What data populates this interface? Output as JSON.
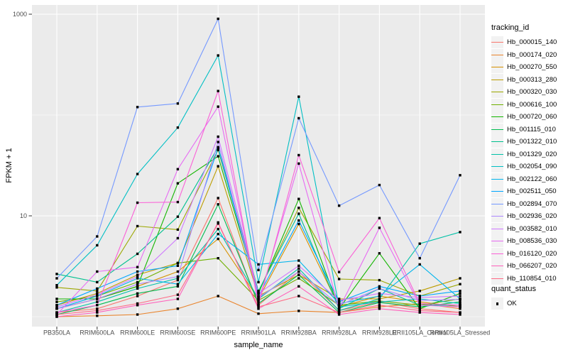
{
  "figure": {
    "colors": {
      "panel_bg": "#EBEBEB",
      "grid": "#FFFFFF",
      "axis_text": "#4D4D4D",
      "tick_mark": "#333333",
      "point": "#000000",
      "legend_key_bg": "#F2F2F2"
    },
    "y_axis": {
      "ticks": [
        {
          "value": 1000,
          "label": "1000"
        },
        {
          "value": 10,
          "label": "10"
        }
      ],
      "minor_gridline_values": [
        100,
        1
      ]
    },
    "legends": {
      "tracking": {
        "title": "tracking_id"
      },
      "quant": {
        "title": "quant_status",
        "entries": [
          {
            "label": "OK",
            "marker": "black-square"
          }
        ]
      }
    }
  },
  "chart_data": {
    "type": "line",
    "title": "",
    "xlabel": "sample_name",
    "ylabel": "FPKM + 1",
    "y_scale": "log10",
    "ylim": [
      1,
      1000
    ],
    "y_breaks": [
      10,
      1000
    ],
    "grid": true,
    "legend_position": "right",
    "point_marker": "black-square",
    "categories": [
      "PB350LA",
      "RRIM600LA",
      "RRIM600LE",
      "RRIM600SE",
      "RRIM600PE",
      "RRIM901LA",
      "RRIM928BA",
      "RRIM928LA",
      "RRIM928LE",
      "RRII105LA_Control",
      "RRII105LA_Stressed"
    ],
    "series": [
      {
        "name": "Hb_000015_140",
        "color": "#F8766D",
        "values": [
          1.1,
          1.2,
          1.6,
          2.3,
          15,
          1.3,
          2.8,
          1.15,
          1.4,
          1.2,
          1.1
        ]
      },
      {
        "name": "Hb_000174_020",
        "color": "#E9842C",
        "values": [
          1.0,
          1.02,
          1.05,
          1.2,
          1.6,
          1.07,
          1.14,
          1.1,
          1.25,
          1.35,
          1.2
        ]
      },
      {
        "name": "Hb_000270_550",
        "color": "#D69100",
        "values": [
          1.2,
          1.5,
          2.0,
          2.8,
          5.9,
          1.5,
          8.3,
          1.25,
          1.6,
          1.4,
          1.25
        ]
      },
      {
        "name": "Hb_000313_280",
        "color": "#BC9D00",
        "values": [
          1.3,
          1.7,
          2.6,
          3.4,
          31,
          1.6,
          2.6,
          1.5,
          1.5,
          1.8,
          2.4
        ]
      },
      {
        "name": "Hb_000320_030",
        "color": "#9CA700",
        "values": [
          1.95,
          1.8,
          7.9,
          7.3,
          45,
          1.75,
          12,
          2.36,
          2.3,
          1.6,
          2.1
        ]
      },
      {
        "name": "Hb_000616_100",
        "color": "#6FB000",
        "values": [
          1.4,
          1.6,
          2.2,
          3.4,
          3.8,
          1.45,
          2.4,
          1.3,
          1.43,
          1.3,
          1.5
        ]
      },
      {
        "name": "Hb_000720_060",
        "color": "#13B600",
        "values": [
          1.5,
          1.5,
          2.0,
          21,
          39,
          1.7,
          14.7,
          1.2,
          4.25,
          1.2,
          1.7
        ]
      },
      {
        "name": "Hb_001115_010",
        "color": "#00BC51",
        "values": [
          1.05,
          1.3,
          1.7,
          2.0,
          13,
          1.35,
          2.6,
          1.1,
          1.38,
          1.25,
          1.4
        ]
      },
      {
        "name": "Hb_001322_010",
        "color": "#00C08E",
        "values": [
          2.65,
          2.2,
          4.2,
          9.8,
          48,
          1.8,
          10.5,
          1.2,
          1.9,
          1.3,
          1.3
        ]
      },
      {
        "name": "Hb_001329_020",
        "color": "#00C1A7",
        "values": [
          1.1,
          1.4,
          1.9,
          2.4,
          7.4,
          1.5,
          3.0,
          1.15,
          1.5,
          5.3,
          6.9
        ]
      },
      {
        "name": "Hb_002054_090",
        "color": "#00BFC4",
        "values": [
          2.05,
          5.1,
          26,
          75,
          390,
          2.2,
          152,
          1.25,
          1.4,
          1.5,
          1.35
        ]
      },
      {
        "name": "Hb_002122_060",
        "color": "#00B5EC",
        "values": [
          1.2,
          1.6,
          2.4,
          2.1,
          6.6,
          3.3,
          3.6,
          1.35,
          1.6,
          3.3,
          1.5
        ]
      },
      {
        "name": "Hb_002511_050",
        "color": "#00A6FF",
        "values": [
          1.3,
          1.9,
          2.8,
          3.2,
          47,
          1.6,
          9.0,
          1.4,
          2.0,
          1.6,
          1.8
        ]
      },
      {
        "name": "Hb_002894_070",
        "color": "#7599FF",
        "values": [
          2.4,
          6.25,
          120,
          130,
          900,
          2.9,
          93,
          12.6,
          20.2,
          3.8,
          25.3
        ]
      },
      {
        "name": "Hb_002936_020",
        "color": "#AC88FF",
        "values": [
          1.2,
          1.5,
          2.1,
          2.5,
          54,
          1.55,
          2.8,
          1.3,
          1.9,
          1.45,
          1.48
        ]
      },
      {
        "name": "Hb_003582_010",
        "color": "#CF78FF",
        "values": [
          1.25,
          1.65,
          2.5,
          6.0,
          61,
          1.7,
          3.2,
          1.45,
          1.7,
          1.55,
          1.6
        ]
      },
      {
        "name": "Hb_008536_030",
        "color": "#E76BF3",
        "values": [
          1.05,
          2.8,
          3.1,
          29,
          121,
          1.4,
          33,
          1.2,
          7.6,
          1.3,
          1.25
        ]
      },
      {
        "name": "Hb_016120_020",
        "color": "#FB61D7",
        "values": [
          1.1,
          1.3,
          13.5,
          13.7,
          173,
          1.3,
          40,
          2.77,
          9.5,
          1.35,
          1.3
        ]
      },
      {
        "name": "Hb_066207_020",
        "color": "#FF62BC",
        "values": [
          1.0,
          1.1,
          1.3,
          1.5,
          8.6,
          1.2,
          2.0,
          1.05,
          1.2,
          1.1,
          1.05
        ]
      },
      {
        "name": "Hb_110854_010",
        "color": "#FF6A85",
        "values": [
          1.05,
          1.15,
          1.35,
          1.65,
          8.4,
          1.25,
          1.6,
          1.1,
          1.3,
          1.15,
          1.1
        ]
      }
    ]
  }
}
